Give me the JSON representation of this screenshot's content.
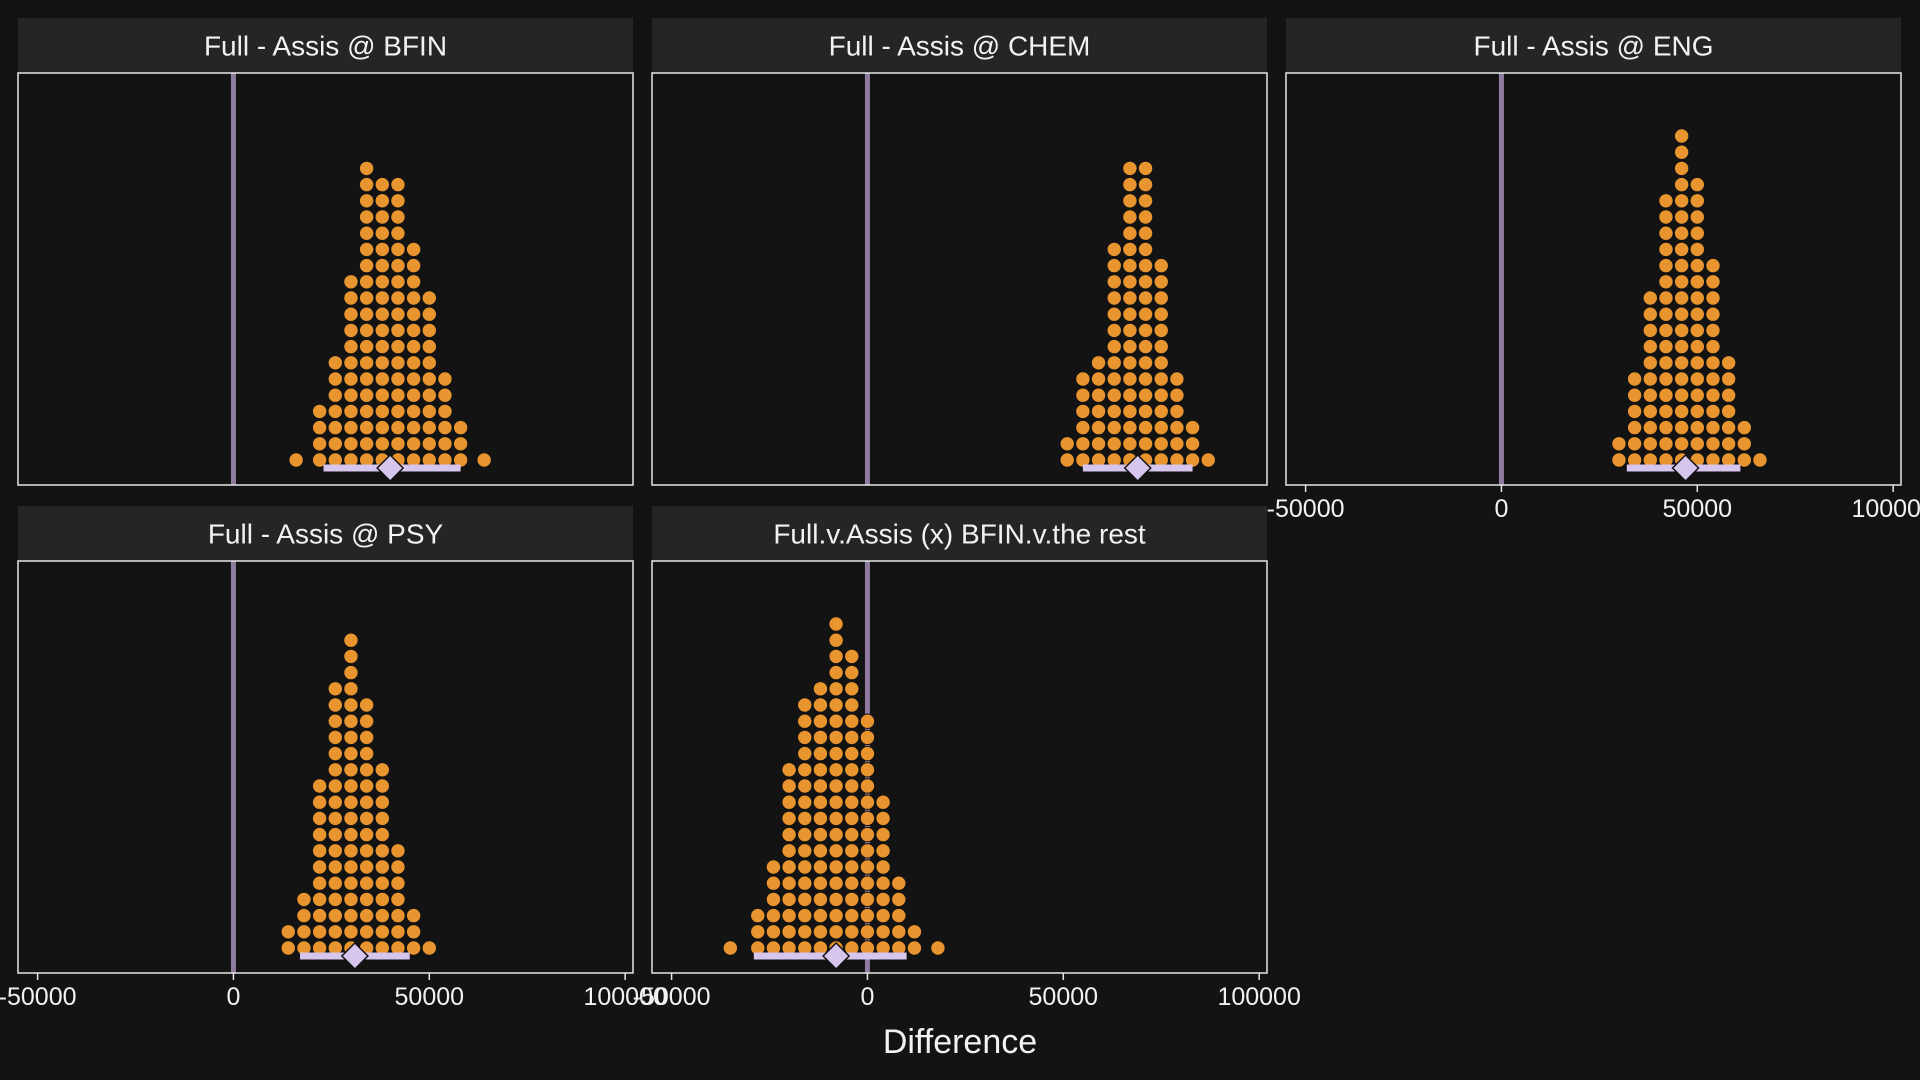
{
  "chart_data": {
    "type": "dotplot",
    "xlabel": "Difference",
    "ylabel": "",
    "xlim": [
      -55000,
      102000
    ],
    "x_ticks": [
      -50000,
      0,
      50000,
      100000
    ],
    "x_tick_labels": [
      "-50000",
      "0",
      "50000",
      "100000"
    ],
    "reference_line": 0,
    "grid": false,
    "colors": {
      "background": "#131313",
      "strip": "#252525",
      "panel_border": "#e6e6e6",
      "dots": "#e8942f",
      "dot_outline": "#131313",
      "interval": "#d6c6ee",
      "point_estimate": "#d6c6ee",
      "reference_line": "#8f7ca0",
      "text": "#f2f2f2"
    },
    "panels": [
      {
        "title": "Full - Assis @ BFIN",
        "dot_bin_centers": [
          16000,
          22000,
          26000,
          30000,
          34000,
          38000,
          42000,
          46000,
          50000,
          54000,
          58000,
          64000
        ],
        "dot_bin_counts": [
          1,
          4,
          7,
          12,
          19,
          18,
          18,
          14,
          11,
          6,
          3,
          1
        ],
        "median": 40000,
        "interval": [
          23000,
          58000
        ]
      },
      {
        "title": "Full - Assis @ CHEM",
        "dot_bin_centers": [
          51000,
          55000,
          59000,
          63000,
          67000,
          71000,
          75000,
          79000,
          83000,
          87000
        ],
        "dot_bin_counts": [
          2,
          6,
          7,
          14,
          19,
          19,
          13,
          6,
          3,
          1
        ],
        "median": 69000,
        "interval": [
          55000,
          83000
        ]
      },
      {
        "title": "Full - Assis @ ENG",
        "dot_bin_centers": [
          30000,
          34000,
          38000,
          42000,
          46000,
          50000,
          54000,
          58000,
          62000,
          66000
        ],
        "dot_bin_counts": [
          2,
          6,
          11,
          17,
          21,
          18,
          13,
          7,
          3,
          1
        ],
        "median": 47000,
        "interval": [
          32000,
          61000
        ]
      },
      {
        "title": "Full - Assis @ PSY",
        "dot_bin_centers": [
          14000,
          18000,
          22000,
          26000,
          30000,
          34000,
          38000,
          42000,
          46000,
          50000
        ],
        "dot_bin_counts": [
          2,
          4,
          11,
          17,
          20,
          16,
          12,
          7,
          3,
          1
        ],
        "median": 31000,
        "interval": [
          17000,
          45000
        ]
      },
      {
        "title": "Full.v.Assis (x) BFIN.v.the rest",
        "dot_bin_centers": [
          -35000,
          -28000,
          -24000,
          -20000,
          -16000,
          -12000,
          -8000,
          -4000,
          0,
          4000,
          8000,
          12000,
          18000
        ],
        "dot_bin_counts": [
          1,
          3,
          6,
          12,
          16,
          17,
          21,
          19,
          15,
          10,
          5,
          2,
          1
        ],
        "median": -8000,
        "interval": [
          -29000,
          10000
        ]
      }
    ]
  }
}
